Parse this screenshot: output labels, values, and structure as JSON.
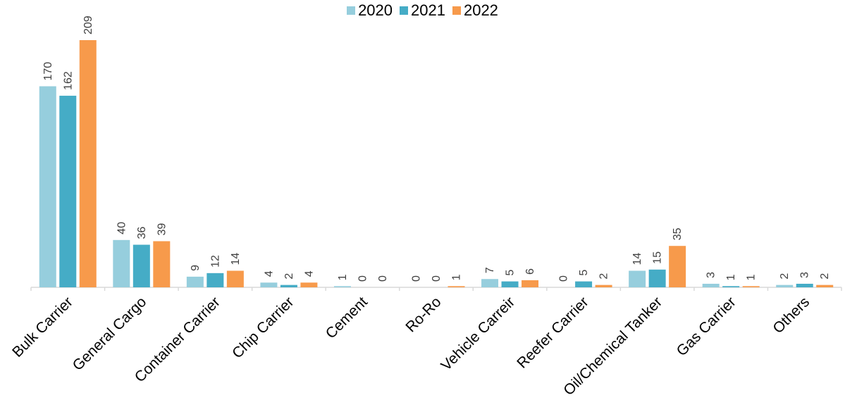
{
  "chart_data": {
    "type": "bar",
    "categories": [
      "Bulk Carrier",
      "General Cargo",
      "Container Carrier",
      "Chip Carrier",
      "Cement",
      "Ro-Ro",
      "Vehicle Carreir",
      "Reefer Carrier",
      "Oil/Chemical Tanker",
      "Gas Carrier",
      "Others"
    ],
    "series": [
      {
        "name": "2020",
        "color": "#96CEDD",
        "values": [
          170,
          40,
          9,
          4,
          1,
          0,
          7,
          0,
          14,
          3,
          2
        ]
      },
      {
        "name": "2021",
        "color": "#45ACC6",
        "values": [
          162,
          36,
          12,
          2,
          0,
          0,
          5,
          5,
          15,
          1,
          3
        ]
      },
      {
        "name": "2022",
        "color": "#F79A4B",
        "values": [
          209,
          39,
          14,
          4,
          0,
          1,
          6,
          2,
          35,
          1,
          2
        ]
      }
    ],
    "ylim": [
      0,
      209
    ],
    "legend_position": "top-center",
    "grid": false,
    "data_labels": true
  }
}
